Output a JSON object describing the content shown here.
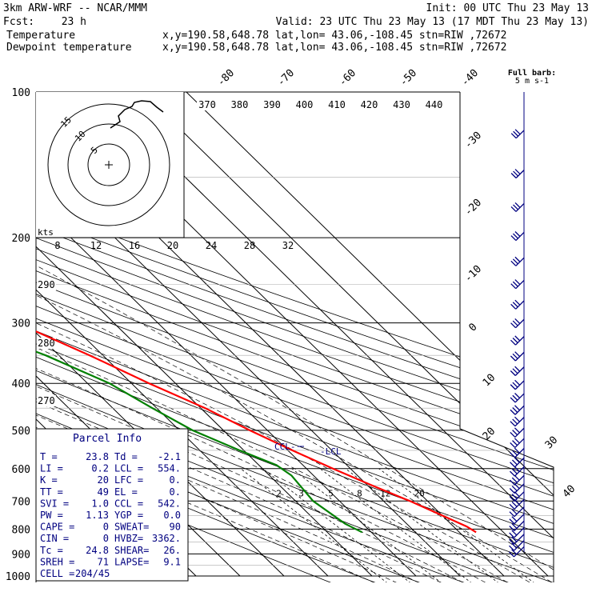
{
  "header": {
    "model": "3km ARW-WRF -- NCAR/MMM",
    "init": "Init: 00 UTC Thu 23 May 13",
    "fcst_label": "Fcst:",
    "fcst_hours": "23 h",
    "valid": "Valid: 23 UTC Thu 23 May 13 (17 MDT Thu 23 May 13)",
    "temperature_label": "Temperature",
    "dewpoint_label": "Dewpoint temperature",
    "location": "x,y=190.58,648.78   lat,lon= 43.06,-108.45  stn=RIW ,72672"
  },
  "colors": {
    "temperature": "#ff0000",
    "dewpoint": "#008000",
    "wind": "#000080",
    "panel_text": "#000080"
  },
  "chart_data": {
    "type": "skew-t log-p sounding",
    "pressure_ticks": [
      100,
      200,
      300,
      400,
      500,
      600,
      700,
      800,
      900,
      1000
    ],
    "isotherm_labels": [
      "-80",
      "-70",
      "-60",
      "-50",
      "-40",
      "-30",
      "-20",
      "-10",
      "0",
      "10",
      "20",
      "30",
      "40"
    ],
    "theta_labels": [
      "370",
      "380",
      "390",
      "400",
      "410",
      "420",
      "430",
      "440"
    ],
    "theta_side_labels": [
      "290",
      "280",
      "270"
    ],
    "mixing_ratio_labels": [
      "2",
      "3",
      "5",
      "8",
      "12",
      "20"
    ],
    "hodograph_ring_labels": [
      "15",
      "10",
      "5"
    ],
    "hodograph_speed_unit": "kts",
    "hodograph_speed_labels": [
      "8",
      "12",
      "16",
      "20",
      "24",
      "28",
      "32"
    ],
    "barb_legend": {
      "title": "Full barb:",
      "value": "5 m s-1"
    },
    "ccl_label": "CCL",
    "lcl_label": "LCL",
    "temperature": [
      {
        "p": 100,
        "t": -59
      },
      {
        "p": 120,
        "t": -63
      },
      {
        "p": 135,
        "t": -58
      },
      {
        "p": 150,
        "t": -54
      },
      {
        "p": 170,
        "t": -53
      },
      {
        "p": 185,
        "t": -55
      },
      {
        "p": 200,
        "t": -52
      },
      {
        "p": 230,
        "t": -47
      },
      {
        "p": 260,
        "t": -40
      },
      {
        "p": 300,
        "t": -32
      },
      {
        "p": 350,
        "t": -23
      },
      {
        "p": 400,
        "t": -16
      },
      {
        "p": 450,
        "t": -9
      },
      {
        "p": 500,
        "t": -4
      },
      {
        "p": 550,
        "t": 1
      },
      {
        "p": 600,
        "t": 6
      },
      {
        "p": 650,
        "t": 11
      },
      {
        "p": 700,
        "t": 16
      },
      {
        "p": 750,
        "t": 20
      },
      {
        "p": 790,
        "t": 23
      },
      {
        "p": 812,
        "t": 23.8
      }
    ],
    "dewpoint": [
      {
        "p": 100,
        "t": -78
      },
      {
        "p": 120,
        "t": -79
      },
      {
        "p": 140,
        "t": -82
      },
      {
        "p": 160,
        "t": -85
      },
      {
        "p": 180,
        "t": -85
      },
      {
        "p": 200,
        "t": -82
      },
      {
        "p": 230,
        "t": -69
      },
      {
        "p": 260,
        "t": -57
      },
      {
        "p": 300,
        "t": -45
      },
      {
        "p": 350,
        "t": -33
      },
      {
        "p": 400,
        "t": -25
      },
      {
        "p": 450,
        "t": -21
      },
      {
        "p": 500,
        "t": -17
      },
      {
        "p": 550,
        "t": -11
      },
      {
        "p": 590,
        "t": -6
      },
      {
        "p": 620,
        "t": -5
      },
      {
        "p": 700,
        "t": -6
      },
      {
        "p": 780,
        "t": -4
      },
      {
        "p": 812,
        "t": -2.1
      }
    ],
    "parcel_info": {
      "title": "Parcel Info",
      "rows": [
        [
          "T  =",
          "23.8",
          "Td =",
          "-2.1"
        ],
        [
          "LI =",
          "0.2",
          "LCL =",
          "554."
        ],
        [
          "K  =",
          "20",
          "LFC =",
          "0."
        ],
        [
          "TT =",
          "49",
          "EL =",
          "0."
        ],
        [
          "SVI =",
          "1.0",
          "CCL =",
          "542."
        ],
        [
          "PW =",
          "1.13",
          "YGP =",
          "0.0"
        ],
        [
          "CAPE =",
          "0",
          "SWEAT=",
          "90"
        ],
        [
          "CIN =",
          "0",
          "HVBZ=",
          "3362."
        ],
        [
          "Tc =",
          "24.8",
          "SHEAR=",
          "26."
        ],
        [
          "SREH =",
          "71",
          "LAPSE=",
          "9.1"
        ],
        [
          "CELL =",
          "204/45",
          "",
          ""
        ]
      ]
    }
  }
}
